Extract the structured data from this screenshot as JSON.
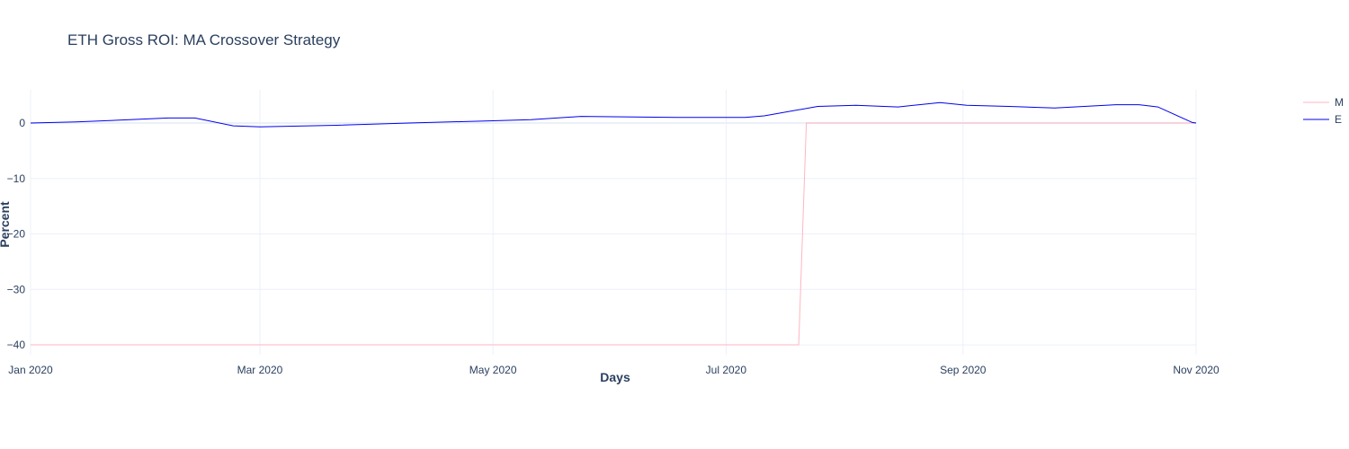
{
  "chart_data": {
    "type": "line",
    "title": "ETH Gross ROI: MA Crossover Strategy",
    "xlabel": "Days",
    "ylabel": "Percent",
    "x_range": [
      "2020-01-01",
      "2020-11-01"
    ],
    "ylim": [
      -40,
      5
    ],
    "x_ticks": [
      {
        "date": "2020-01-01",
        "label": "Jan 2020"
      },
      {
        "date": "2020-03-01",
        "label": "Mar 2020"
      },
      {
        "date": "2020-05-01",
        "label": "May 2020"
      },
      {
        "date": "2020-07-01",
        "label": "Jul 2020"
      },
      {
        "date": "2020-09-01",
        "label": "Sep 2020"
      },
      {
        "date": "2020-11-01",
        "label": "Nov 2020"
      }
    ],
    "y_ticks": [
      {
        "value": 0,
        "label": "0"
      },
      {
        "value": -10,
        "label": "−10"
      },
      {
        "value": -20,
        "label": "−20"
      },
      {
        "value": -30,
        "label": "−30"
      },
      {
        "value": -40,
        "label": "−40"
      }
    ],
    "grid": true,
    "legend_position": "top-right",
    "series": [
      {
        "name": "M",
        "color": "#ffb6c1",
        "points": [
          [
            "2020-01-01",
            -40
          ],
          [
            "2020-07-20",
            -40
          ],
          [
            "2020-07-22",
            0
          ],
          [
            "2020-11-01",
            0
          ]
        ]
      },
      {
        "name": "E",
        "color": "#0000ee",
        "points": [
          [
            "2020-01-01",
            0.0
          ],
          [
            "2020-01-13",
            0.2
          ],
          [
            "2020-01-27",
            0.6
          ],
          [
            "2020-02-06",
            0.9
          ],
          [
            "2020-02-13",
            0.9
          ],
          [
            "2020-02-23",
            -0.5
          ],
          [
            "2020-03-01",
            -0.7
          ],
          [
            "2020-03-21",
            -0.4
          ],
          [
            "2020-04-09",
            0.0
          ],
          [
            "2020-05-01",
            0.4
          ],
          [
            "2020-05-11",
            0.6
          ],
          [
            "2020-05-24",
            1.2
          ],
          [
            "2020-06-18",
            1.0
          ],
          [
            "2020-06-27",
            1.0
          ],
          [
            "2020-07-06",
            1.0
          ],
          [
            "2020-07-11",
            1.3
          ],
          [
            "2020-07-25",
            3.0
          ],
          [
            "2020-08-04",
            3.2
          ],
          [
            "2020-08-15",
            2.9
          ],
          [
            "2020-08-26",
            3.7
          ],
          [
            "2020-09-02",
            3.2
          ],
          [
            "2020-09-13",
            3.0
          ],
          [
            "2020-09-25",
            2.7
          ],
          [
            "2020-10-11",
            3.3
          ],
          [
            "2020-10-17",
            3.3
          ],
          [
            "2020-10-22",
            2.9
          ],
          [
            "2020-10-31",
            0.1
          ],
          [
            "2020-11-01",
            0.0
          ]
        ]
      }
    ]
  }
}
